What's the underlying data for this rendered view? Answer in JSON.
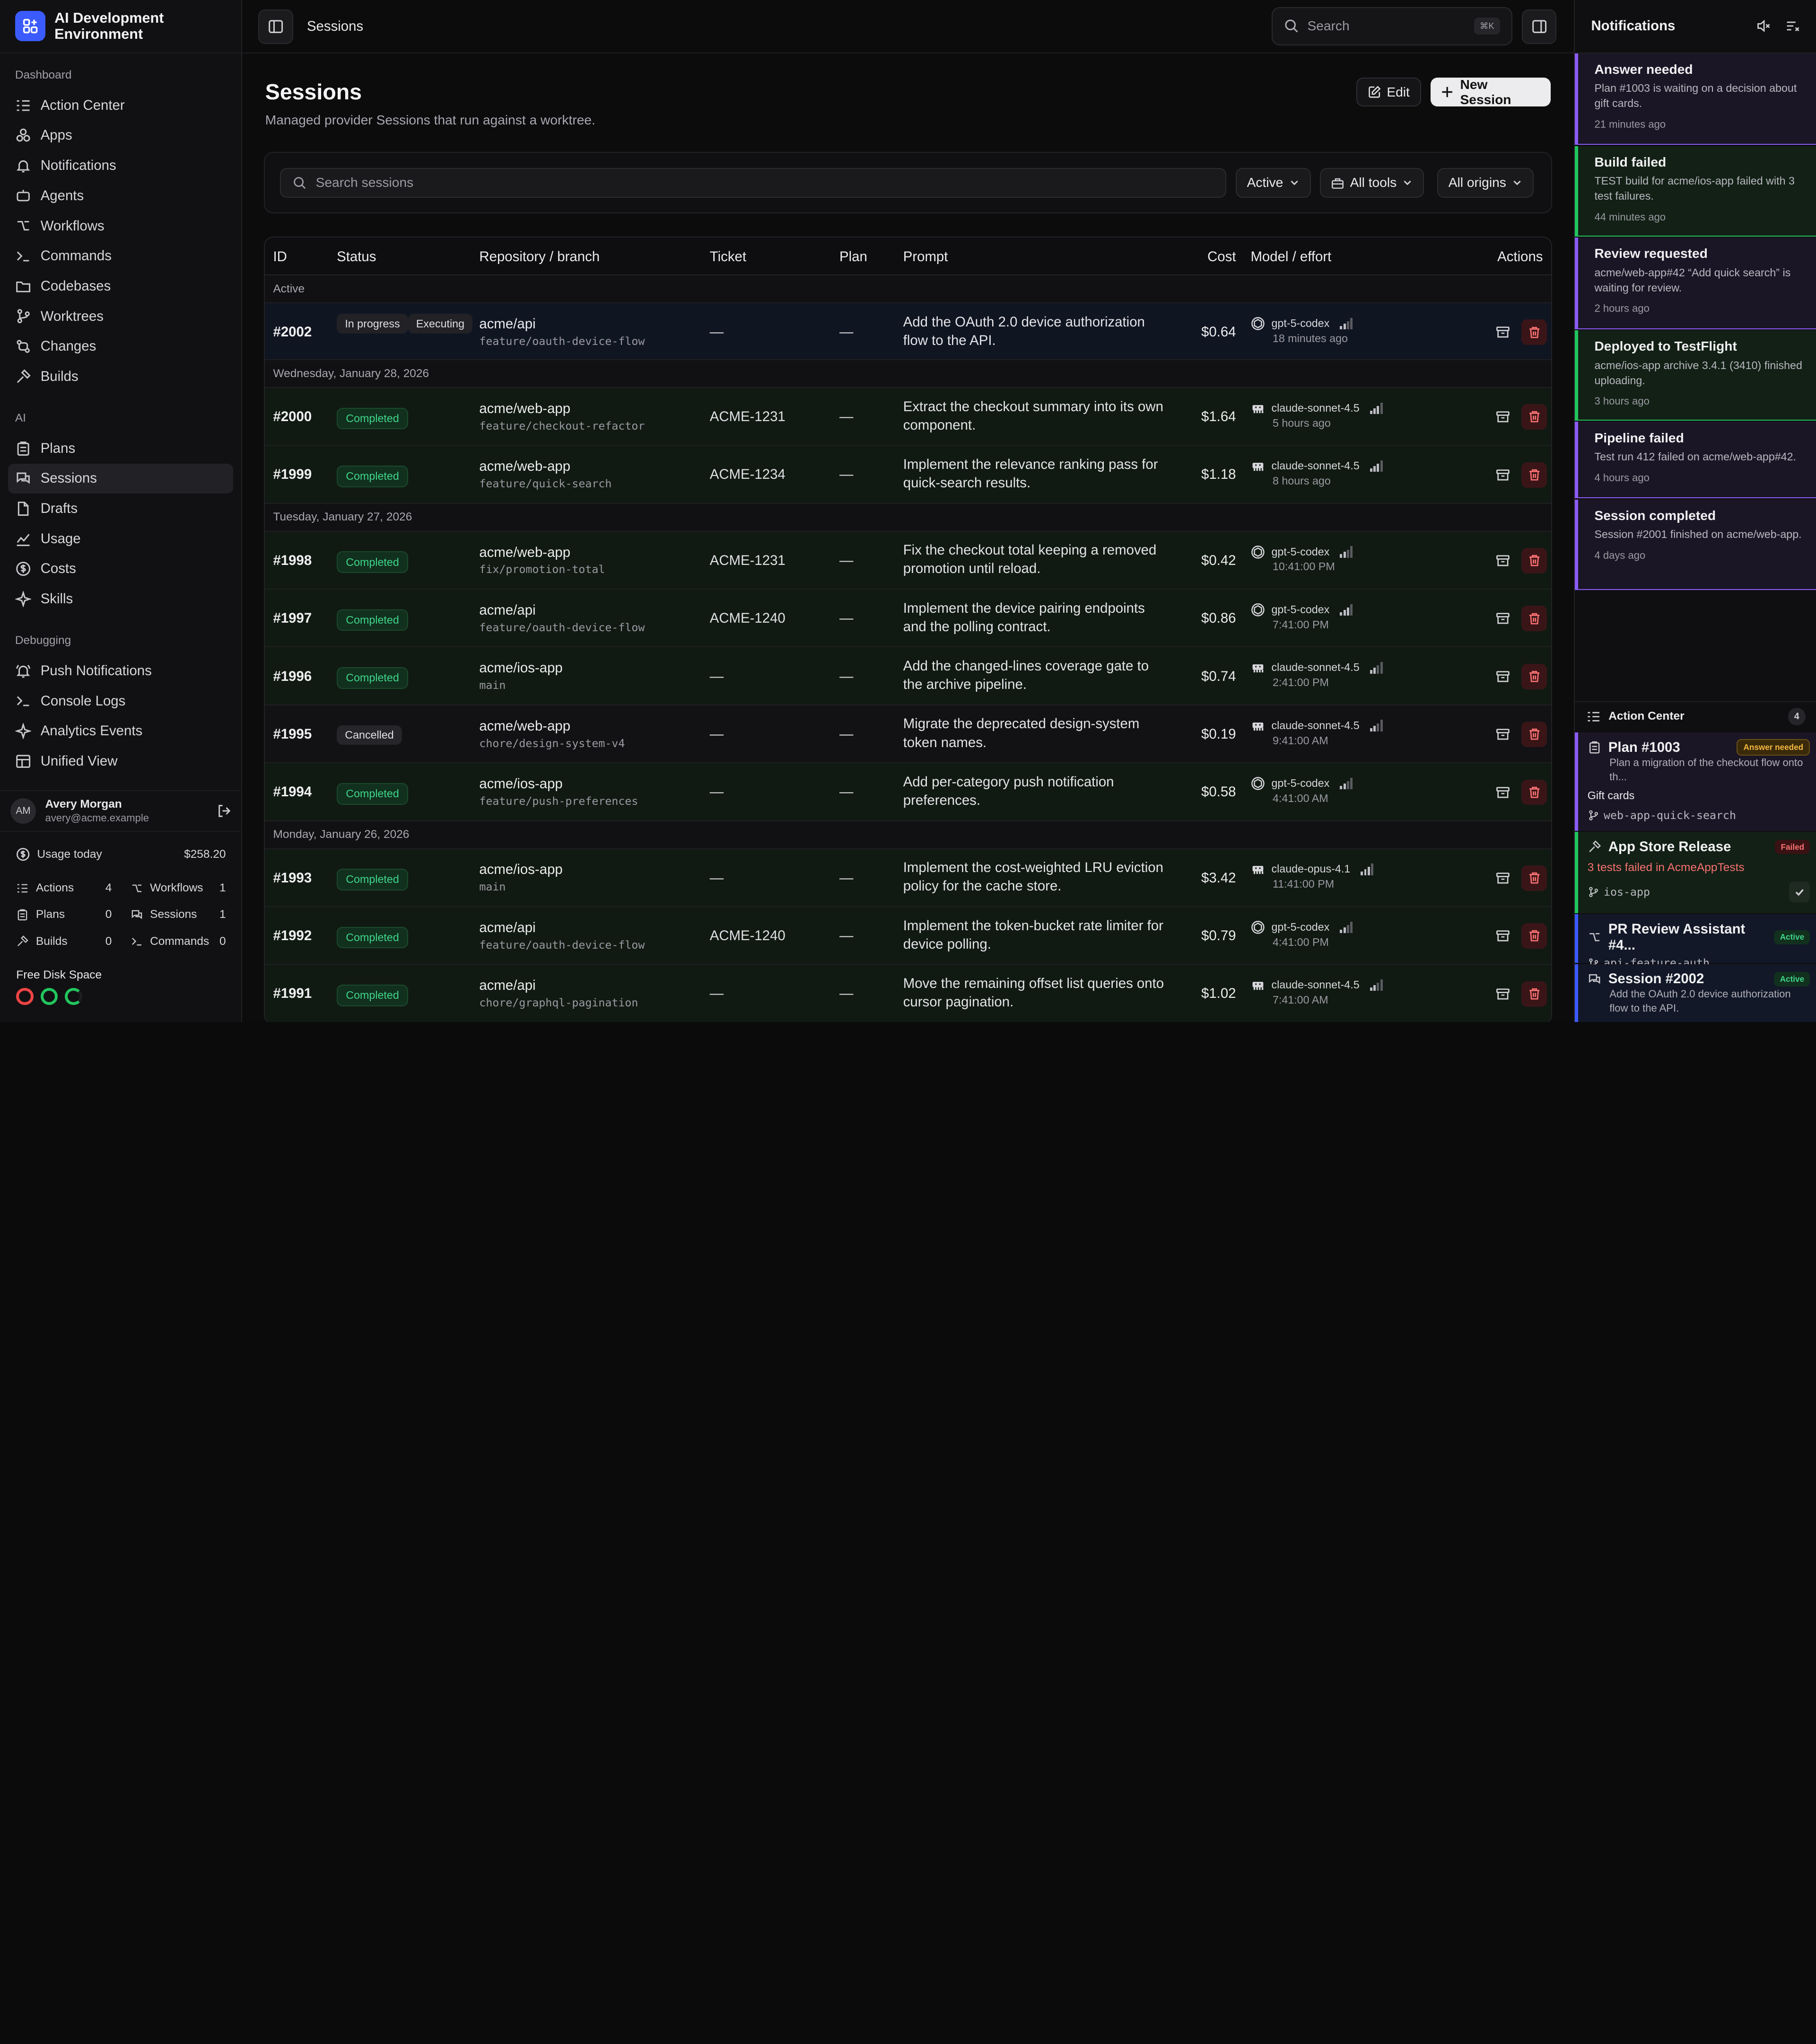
{
  "brand": {
    "name_line1": "AI Development",
    "name_line2": "Environment"
  },
  "sidebar": {
    "sections": [
      {
        "label": "Dashboard",
        "items": [
          "Action Center",
          "Apps",
          "Notifications",
          "Agents",
          "Workflows",
          "Commands",
          "Codebases",
          "Worktrees",
          "Changes",
          "Builds"
        ]
      },
      {
        "label": "AI",
        "items": [
          "Plans",
          "Sessions",
          "Drafts",
          "Usage",
          "Costs",
          "Skills"
        ]
      },
      {
        "label": "Debugging",
        "items": [
          "Push Notifications",
          "Console Logs",
          "Analytics Events",
          "Unified View"
        ]
      }
    ],
    "active_item": "Sessions"
  },
  "user": {
    "initials": "AM",
    "name": "Avery Morgan",
    "email": "avery@acme.example"
  },
  "usage": {
    "label": "Usage today",
    "amount": "$258.20",
    "stats": [
      {
        "label": "Actions",
        "value": "4"
      },
      {
        "label": "Workflows",
        "value": "1"
      },
      {
        "label": "Plans",
        "value": "0"
      },
      {
        "label": "Sessions",
        "value": "1"
      },
      {
        "label": "Builds",
        "value": "0"
      },
      {
        "label": "Commands",
        "value": "0"
      }
    ],
    "disk_label": "Free Disk Space",
    "disk_colors": [
      "#ef4444",
      "#22c55e",
      "#22c55e"
    ]
  },
  "topbar": {
    "breadcrumb": "Sessions",
    "search_placeholder": "Search",
    "search_kbd": "⌘K"
  },
  "page": {
    "title": "Sessions",
    "subtitle": "Managed provider Sessions that run against a worktree.",
    "edit_label": "Edit",
    "new_label": "New Session"
  },
  "filters": {
    "search_placeholder": "Search sessions",
    "status": "Active",
    "tools": "All tools",
    "origins": "All origins"
  },
  "table": {
    "headers": {
      "id": "ID",
      "status": "Status",
      "repo": "Repository / branch",
      "ticket": "Ticket",
      "plan": "Plan",
      "prompt": "Prompt",
      "cost": "Cost",
      "model": "Model / effort",
      "actions": "Actions"
    },
    "groups": [
      {
        "label": "Active",
        "rows": [
          {
            "id": "#2002",
            "status": [
              "In progress",
              "Executing"
            ],
            "kind": "active",
            "repo": "acme/api",
            "branch": "feature/oauth-device-flow",
            "ticket": "—",
            "plan": "—",
            "prompt": "Add the OAuth 2.0 device authorization flow to the API.",
            "cost": "$0.64",
            "model": "gpt-5-codex",
            "model_icon": "openai-icon",
            "time": "18 minutes ago",
            "effort": 2
          }
        ]
      },
      {
        "label": "Wednesday, January 28, 2026",
        "rows": [
          {
            "id": "#2000",
            "status": [
              "Completed"
            ],
            "kind": "done",
            "repo": "acme/web-app",
            "branch": "feature/checkout-refactor",
            "ticket": "ACME-1231",
            "plan": "—",
            "prompt": "Extract the checkout summary into its own component.",
            "cost": "$1.64",
            "model": "claude-sonnet-4.5",
            "model_icon": "claude-icon",
            "time": "5 hours ago",
            "effort": 3
          },
          {
            "id": "#1999",
            "status": [
              "Completed"
            ],
            "kind": "done",
            "repo": "acme/web-app",
            "branch": "feature/quick-search",
            "ticket": "ACME-1234",
            "plan": "—",
            "prompt": "Implement the relevance ranking pass for quick-search results.",
            "cost": "$1.18",
            "model": "claude-sonnet-4.5",
            "model_icon": "claude-icon",
            "time": "8 hours ago",
            "effort": 3
          }
        ]
      },
      {
        "label": "Tuesday, January 27, 2026",
        "rows": [
          {
            "id": "#1998",
            "status": [
              "Completed"
            ],
            "kind": "done",
            "repo": "acme/web-app",
            "branch": "fix/promotion-total",
            "ticket": "ACME-1231",
            "plan": "—",
            "prompt": "Fix the checkout total keeping a removed promotion until reload.",
            "cost": "$0.42",
            "model": "gpt-5-codex",
            "model_icon": "openai-icon",
            "time": "10:41:00 PM",
            "effort": 2
          },
          {
            "id": "#1997",
            "status": [
              "Completed"
            ],
            "kind": "done",
            "repo": "acme/api",
            "branch": "feature/oauth-device-flow",
            "ticket": "ACME-1240",
            "plan": "—",
            "prompt": "Implement the device pairing endpoints and the polling contract.",
            "cost": "$0.86",
            "model": "gpt-5-codex",
            "model_icon": "openai-icon",
            "time": "7:41:00 PM",
            "effort": 3
          },
          {
            "id": "#1996",
            "status": [
              "Completed"
            ],
            "kind": "done",
            "repo": "acme/ios-app",
            "branch": "main",
            "ticket": "—",
            "plan": "—",
            "prompt": "Add the changed-lines coverage gate to the archive pipeline.",
            "cost": "$0.74",
            "model": "claude-sonnet-4.5",
            "model_icon": "claude-icon",
            "time": "2:41:00 PM",
            "effort": 2
          },
          {
            "id": "#1995",
            "status": [
              "Cancelled"
            ],
            "kind": "cancel",
            "repo": "acme/web-app",
            "branch": "chore/design-system-v4",
            "ticket": "—",
            "plan": "—",
            "prompt": "Migrate the deprecated design-system token names.",
            "cost": "$0.19",
            "model": "claude-sonnet-4.5",
            "model_icon": "claude-icon",
            "time": "9:41:00 AM",
            "effort": 2
          },
          {
            "id": "#1994",
            "status": [
              "Completed"
            ],
            "kind": "done",
            "repo": "acme/ios-app",
            "branch": "feature/push-preferences",
            "ticket": "—",
            "plan": "—",
            "prompt": "Add per-category push notification preferences.",
            "cost": "$0.58",
            "model": "gpt-5-codex",
            "model_icon": "openai-icon",
            "time": "4:41:00 AM",
            "effort": 2
          }
        ]
      },
      {
        "label": "Monday, January 26, 2026",
        "rows": [
          {
            "id": "#1993",
            "status": [
              "Completed"
            ],
            "kind": "done",
            "repo": "acme/ios-app",
            "branch": "main",
            "ticket": "—",
            "plan": "—",
            "prompt": "Implement the cost-weighted LRU eviction policy for the cache store.",
            "cost": "$3.42",
            "model": "claude-opus-4.1",
            "model_icon": "claude-icon",
            "time": "11:41:00 PM",
            "effort": 3
          },
          {
            "id": "#1992",
            "status": [
              "Completed"
            ],
            "kind": "done",
            "repo": "acme/api",
            "branch": "feature/oauth-device-flow",
            "ticket": "ACME-1240",
            "plan": "—",
            "prompt": "Implement the token-bucket rate limiter for device polling.",
            "cost": "$0.79",
            "model": "gpt-5-codex",
            "model_icon": "openai-icon",
            "time": "4:41:00 PM",
            "effort": 2
          },
          {
            "id": "#1991",
            "status": [
              "Completed"
            ],
            "kind": "done",
            "repo": "acme/api",
            "branch": "chore/graphql-pagination",
            "ticket": "—",
            "plan": "—",
            "prompt": "Move the remaining offset list queries onto cursor pagination.",
            "cost": "$1.02",
            "model": "claude-sonnet-4.5",
            "model_icon": "claude-icon",
            "time": "7:41:00 AM",
            "effort": 2
          }
        ]
      }
    ]
  },
  "notifications": {
    "title": "Notifications",
    "items": [
      {
        "title": "Answer needed",
        "desc": "Plan #1003 is waiting on a decision about gift cards.",
        "ago": "21 minutes ago",
        "tone": "purple"
      },
      {
        "title": "Build failed",
        "desc": "TEST build for acme/ios-app failed with 3 test failures.",
        "ago": "44 minutes ago",
        "tone": "green"
      },
      {
        "title": "Review requested",
        "desc": "acme/web-app#42 “Add quick search” is waiting for review.",
        "ago": "2 hours ago",
        "tone": "purple"
      },
      {
        "title": "Deployed to TestFlight",
        "desc": "acme/ios-app archive 3.4.1 (3410) finished uploading.",
        "ago": "3 hours ago",
        "tone": "green"
      },
      {
        "title": "Pipeline failed",
        "desc": "Test run 412 failed on acme/web-app#42.",
        "ago": "4 hours ago",
        "tone": "purple"
      },
      {
        "title": "Session completed",
        "desc": "Session #2001 finished on acme/web-app.",
        "ago": "4 days ago",
        "tone": "purple"
      }
    ]
  },
  "action_center": {
    "title": "Action Center",
    "count": "4",
    "items": [
      {
        "title": "Plan #1003",
        "tag": "Answer needed",
        "desc": "Plan a migration of the checkout flow onto th...",
        "extra": "Gift cards",
        "branch": "web-app-quick-search"
      },
      {
        "title": "App Store Release",
        "tag": "Failed",
        "desc": "3 tests failed in AcmeAppTests",
        "branch": "ios-app"
      },
      {
        "title": "PR Review Assistant #4...",
        "tag": "Active",
        "branch": "api-feature-auth"
      },
      {
        "title": "Session #2002",
        "tag": "Active",
        "desc": "Add the OAuth 2.0 device authorization flow to the API."
      }
    ]
  }
}
